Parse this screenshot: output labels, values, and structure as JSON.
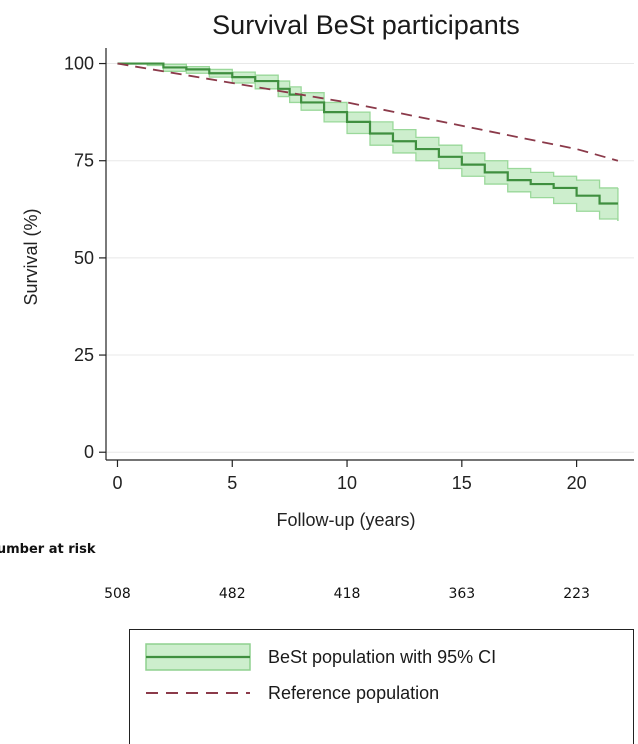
{
  "chart_data": {
    "type": "line",
    "title": "Survival BeSt participants",
    "xlabel": "Follow-up (years)",
    "ylabel": "Survival (%)",
    "xlim": [
      -0.5,
      22.5
    ],
    "ylim": [
      -2,
      104
    ],
    "xticks": [
      0,
      5,
      10,
      15,
      20
    ],
    "yticks": [
      0,
      25,
      50,
      75,
      100
    ],
    "grid": "horizontal",
    "series": [
      {
        "name": "BeSt population with 95% CI",
        "style": "solid-step",
        "color": "#3f8f3f",
        "ci_color": "#cdeecd",
        "x": [
          0,
          1.3,
          2,
          3,
          4,
          5,
          6,
          7,
          7.5,
          8,
          9,
          10,
          11,
          12,
          13,
          14,
          15,
          16,
          17,
          18,
          19,
          20,
          21,
          21.8
        ],
        "y": [
          100,
          100,
          99,
          98.5,
          97.5,
          96.5,
          95.5,
          93.5,
          92,
          90,
          87.5,
          85,
          82,
          80,
          78,
          76,
          74,
          72,
          70,
          69,
          68,
          66,
          64,
          64
        ],
        "ci_lower": [
          100,
          99.5,
          98,
          97.5,
          96.5,
          95,
          93.5,
          91.5,
          90,
          88,
          85,
          82,
          79,
          77,
          75,
          73,
          71,
          69,
          67,
          65.5,
          64,
          62,
          60,
          59.5
        ],
        "ci_upper": [
          100,
          100,
          99.8,
          99.2,
          98.5,
          97.8,
          97,
          95.5,
          94,
          92.5,
          90,
          87.5,
          85,
          83,
          81,
          79,
          77,
          75,
          73,
          72,
          71,
          70,
          68,
          68
        ]
      },
      {
        "name": "Reference population",
        "style": "dashed",
        "color": "#8b3a4a",
        "x": [
          0,
          5,
          8,
          10,
          15,
          20,
          21.8
        ],
        "y": [
          100,
          95,
          92,
          90,
          84,
          78,
          75
        ]
      }
    ],
    "number_at_risk": {
      "label": "Number at risk",
      "x": [
        0,
        5,
        10,
        15,
        20
      ],
      "values": [
        "508",
        "482",
        "418",
        "363",
        "223"
      ]
    },
    "legend": {
      "placement": "bottom",
      "entries": [
        "BeSt population with 95% CI",
        "Reference population"
      ]
    }
  }
}
